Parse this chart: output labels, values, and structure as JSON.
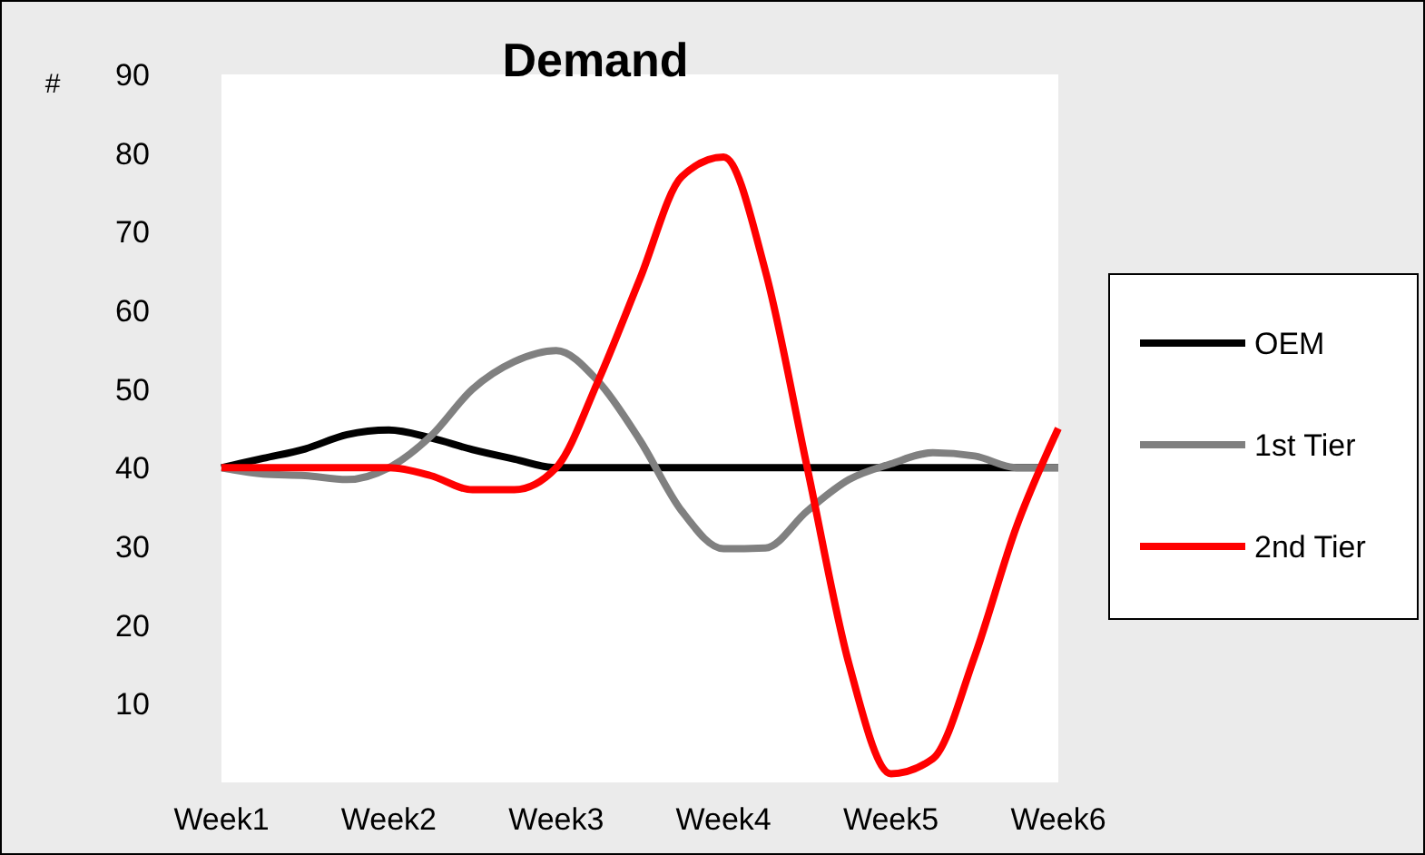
{
  "chart_data": {
    "type": "line",
    "title": "Demand",
    "ylabel": "#",
    "categories": [
      "Week1",
      null,
      null,
      null,
      "Week2",
      null,
      null,
      null,
      "Week3",
      null,
      null,
      null,
      "Week4",
      null,
      null,
      null,
      "Week5",
      null,
      null,
      null,
      "Week6"
    ],
    "ylim": [
      0,
      90
    ],
    "yticks": [
      10,
      20,
      30,
      40,
      50,
      60,
      70,
      80,
      90
    ],
    "grid": false,
    "legend": "right",
    "marker": "none",
    "line_style": "solid",
    "series": [
      {
        "name": "OEM",
        "color": "#000000",
        "values": [
          40,
          41.2,
          42.4,
          44.2,
          44.8,
          43.8,
          42.3,
          41.1,
          40,
          40,
          40,
          40,
          40,
          40,
          40,
          40,
          40,
          40,
          40,
          40,
          40
        ]
      },
      {
        "name": "1st Tier",
        "color": "#808080",
        "values": [
          40,
          39.2,
          39,
          38.5,
          40,
          44,
          50,
          53.5,
          54.9,
          51,
          43.5,
          34.5,
          29.7,
          29.8,
          34.5,
          38.5,
          40.5,
          41.9,
          41.5,
          40,
          40
        ]
      },
      {
        "name": "2nd Tier",
        "color": "#ff0000",
        "values": [
          40,
          40,
          40,
          40,
          40,
          39,
          37.2,
          37.2,
          40,
          51,
          64,
          77,
          79.5,
          65,
          40,
          15,
          1.1,
          3,
          16,
          32.5,
          45
        ]
      }
    ]
  }
}
